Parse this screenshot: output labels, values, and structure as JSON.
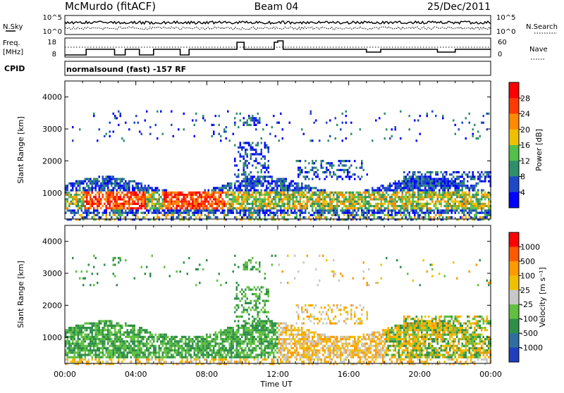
{
  "header": {
    "station": "McMurdo (fitACF)",
    "beam": "Beam 04",
    "date": "25/Dec/2011"
  },
  "noise_panel": {
    "left_label": "N.Sky",
    "right_label": "N.Search",
    "ticks_left": [
      "10^5",
      "10^0"
    ],
    "ticks_right": [
      "10^5",
      "10^0"
    ]
  },
  "freq_panel": {
    "left_label_1": "Freq.",
    "left_label_2": "[MHz]",
    "right_label": "Nave",
    "ticks_left": [
      "18",
      "8"
    ],
    "ticks_right": [
      "60",
      "0"
    ]
  },
  "cpid": {
    "label": "CPID",
    "mode": "normalsound (fast) -157 RF"
  },
  "x_axis": {
    "label": "Time UT",
    "ticks": [
      "00:00",
      "04:00",
      "08:00",
      "12:00",
      "16:00",
      "20:00",
      "00:00"
    ]
  },
  "chart_data": [
    {
      "type": "heatmap",
      "title": "",
      "xlabel": "Time UT",
      "ylabel": "Slant Range [km]",
      "x_ticks": [
        "00:00",
        "04:00",
        "08:00",
        "12:00",
        "16:00",
        "20:00",
        "00:00"
      ],
      "x_range_hours": [
        0,
        24
      ],
      "y_ticks": [
        1000,
        2000,
        3000,
        4000
      ],
      "ylim": [
        180,
        4500
      ],
      "colorbar": {
        "label": "Power [dB]",
        "ticks": [
          "4",
          "8",
          "12",
          "16",
          "20",
          "24",
          "28"
        ],
        "colors": [
          "#0000ff",
          "#1f48c8",
          "#2f8f6a",
          "#52c04a",
          "#f0c000",
          "#ff8a00",
          "#ff3a00",
          "#ff0000"
        ]
      }
    },
    {
      "type": "heatmap",
      "title": "",
      "xlabel": "Time UT",
      "ylabel": "Slant Range [km]",
      "x_ticks": [
        "00:00",
        "04:00",
        "08:00",
        "12:00",
        "16:00",
        "20:00",
        "00:00"
      ],
      "x_range_hours": [
        0,
        24
      ],
      "y_ticks": [
        1000,
        2000,
        3000,
        4000
      ],
      "ylim": [
        180,
        4500
      ],
      "colorbar": {
        "label": "Velocity [m s⁻¹]",
        "ticks": [
          "1000",
          "500",
          "100",
          "25",
          "-25",
          "-100",
          "-500",
          "-1000"
        ],
        "colors": [
          "#1f3fbf",
          "#2f6fa0",
          "#2f8f4a",
          "#60c040",
          "#c8c8c8",
          "#f0c000",
          "#ff9a00",
          "#ff5a00",
          "#ff0000"
        ]
      }
    }
  ]
}
